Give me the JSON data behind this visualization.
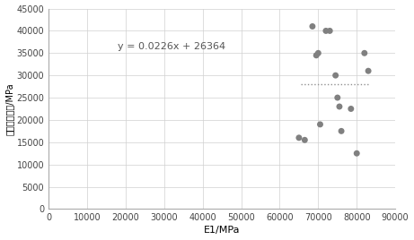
{
  "scatter_x": [
    65000,
    66500,
    68500,
    69500,
    70000,
    70500,
    72000,
    73000,
    74500,
    75000,
    75500,
    76000,
    78500,
    80000,
    82000,
    83000
  ],
  "scatter_y": [
    16000,
    15500,
    41000,
    34500,
    35000,
    19000,
    40000,
    40000,
    30000,
    25000,
    23000,
    17500,
    22500,
    12500,
    35000,
    31000
  ],
  "dotted_line_x": [
    65500,
    83000
  ],
  "dotted_line_y": [
    28000,
    28000
  ],
  "equation_text": "y = 0.0226x + 26364",
  "equation_x": 18000,
  "equation_y": 36500,
  "xlabel": "E1/MPa",
  "ylabel": "实测杨氏模量/MPa",
  "xlim": [
    0,
    90000
  ],
  "ylim": [
    0,
    45000
  ],
  "xticks": [
    0,
    10000,
    20000,
    30000,
    40000,
    50000,
    60000,
    70000,
    80000,
    90000
  ],
  "yticks": [
    0,
    5000,
    10000,
    15000,
    20000,
    25000,
    30000,
    35000,
    40000,
    45000
  ],
  "dot_color": "#808080",
  "dot_size": 25,
  "line_color": "#909090",
  "grid_color": "#d0d0d0",
  "bg_color": "#ffffff",
  "spine_color": "#aaaaaa",
  "tick_fontsize": 7,
  "label_fontsize": 8,
  "eq_fontsize": 8
}
